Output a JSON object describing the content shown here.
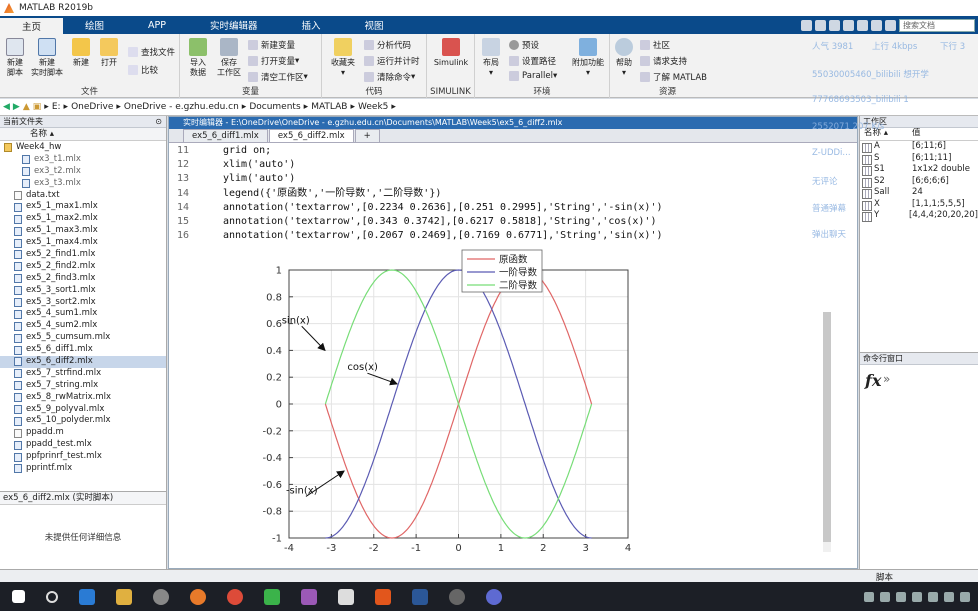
{
  "window": {
    "title": "MATLAB R2019b"
  },
  "ribbon_tabs": [
    "主页",
    "绘图",
    "APP",
    "实时编辑器",
    "插入",
    "视图"
  ],
  "search_placeholder": "搜索文档",
  "ribbon": {
    "new_script": "新建\n脚本",
    "new_live_script": "新建\n实时脚本",
    "new": "新建",
    "open": "打开",
    "find_files": "查找文件",
    "compare": "比较",
    "file_group": "文件",
    "import_data": "导入\n数据",
    "save_workspace": "保存\n工作区",
    "new_variable": "新建变量",
    "open_variable": "打开变量",
    "clear_workspace": "清空工作区",
    "variable_group": "变量",
    "favorites": "收藏夹",
    "analyze_code": "分析代码",
    "run_and_time": "运行并计时",
    "clear_commands": "清除命令",
    "code_group": "代码",
    "simulink": "Simulink",
    "simulink_group": "SIMULINK",
    "layout": "布局",
    "preferences": "预设",
    "set_path": "设置路径",
    "parallel": "Parallel",
    "addons": "附加功能",
    "env_group": "环境",
    "help": "帮助",
    "community": "社区",
    "request_support": "请求支持",
    "learn_matlab": "了解 MATLAB",
    "resources_group": "资源"
  },
  "address": [
    "E:",
    "OneDrive",
    "OneDrive - e.gzhu.edu.cn",
    "Documents",
    "MATLAB",
    "Week5"
  ],
  "current_folder": {
    "header": "当前文件夹",
    "name_col": "名称 ▴",
    "files": [
      {
        "name": "Week4_hw",
        "kind": "folder"
      },
      {
        "name": "ex3_t1.mlx",
        "kind": "sub"
      },
      {
        "name": "ex3_t2.mlx",
        "kind": "sub"
      },
      {
        "name": "ex3_t3.mlx",
        "kind": "sub"
      },
      {
        "name": "data.txt",
        "kind": "txt"
      },
      {
        "name": "ex5_1_max1.mlx",
        "kind": "mlx"
      },
      {
        "name": "ex5_1_max2.mlx",
        "kind": "mlx"
      },
      {
        "name": "ex5_1_max3.mlx",
        "kind": "mlx"
      },
      {
        "name": "ex5_1_max4.mlx",
        "kind": "mlx"
      },
      {
        "name": "ex5_2_find1.mlx",
        "kind": "mlx"
      },
      {
        "name": "ex5_2_find2.mlx",
        "kind": "mlx"
      },
      {
        "name": "ex5_2_find3.mlx",
        "kind": "mlx"
      },
      {
        "name": "ex5_3_sort1.mlx",
        "kind": "mlx"
      },
      {
        "name": "ex5_3_sort2.mlx",
        "kind": "mlx"
      },
      {
        "name": "ex5_4_sum1.mlx",
        "kind": "mlx"
      },
      {
        "name": "ex5_4_sum2.mlx",
        "kind": "mlx"
      },
      {
        "name": "ex5_5_cumsum.mlx",
        "kind": "mlx"
      },
      {
        "name": "ex5_6_diff1.mlx",
        "kind": "mlx"
      },
      {
        "name": "ex5_6_diff2.mlx",
        "kind": "mlx",
        "selected": true
      },
      {
        "name": "ex5_7_strfind.mlx",
        "kind": "mlx"
      },
      {
        "name": "ex5_7_string.mlx",
        "kind": "mlx"
      },
      {
        "name": "ex5_8_rwMatrix.mlx",
        "kind": "mlx"
      },
      {
        "name": "ex5_9_polyval.mlx",
        "kind": "mlx"
      },
      {
        "name": "ex5_10_polyder.mlx",
        "kind": "mlx"
      },
      {
        "name": "ppadd.m",
        "kind": "m"
      },
      {
        "name": "ppadd_test.mlx",
        "kind": "mlx"
      },
      {
        "name": "ppfprinrf_test.mlx",
        "kind": "mlx"
      },
      {
        "name": "pprintf.mlx",
        "kind": "mlx"
      }
    ],
    "detail_header": "ex5_6_diff2.mlx (实时脚本)",
    "detail_text": "未提供任何详细信息"
  },
  "editor": {
    "title": "实时编辑器 - E:\\OneDrive\\OneDrive - e.gzhu.edu.cn\\Documents\\MATLAB\\Week5\\ex5_6_diff2.mlx",
    "tabs": [
      "ex5_6_diff1.mlx",
      "ex5_6_diff2.mlx",
      "+"
    ],
    "code_lines": [
      {
        "n": "11",
        "t": "grid on;"
      },
      {
        "n": "12",
        "t": "xlim('auto')"
      },
      {
        "n": "13",
        "t": "ylim('auto')"
      },
      {
        "n": "14",
        "t": "legend({'原函数','一阶导数','二阶导数'})"
      },
      {
        "n": "14",
        "t": "annotation('textarrow',[0.2234 0.2636],[0.251 0.2995],'String','-sin(x)')"
      },
      {
        "n": "15",
        "t": "annotation('textarrow',[0.343 0.3742],[0.6217 0.5818],'String','cos(x)')"
      },
      {
        "n": "16",
        "t": "annotation('textarrow',[0.2067 0.2469],[0.7169 0.6771],'String','sin(x)')"
      }
    ]
  },
  "chart_data": {
    "type": "line",
    "xlim": [
      -4,
      4
    ],
    "ylim": [
      -1,
      1
    ],
    "xticks": [
      -4,
      -3,
      -2,
      -1,
      0,
      1,
      2,
      3,
      4
    ],
    "yticks": [
      -1,
      -0.8,
      -0.6,
      -0.4,
      -0.2,
      0,
      0.2,
      0.4,
      0.6,
      0.8,
      1
    ],
    "grid": true,
    "legend_position": "top-right",
    "series": [
      {
        "name": "原函数",
        "func": "sin(x)",
        "color": "#e06666"
      },
      {
        "name": "一阶导数",
        "func": "cos(x)",
        "color": "#5b5bb3"
      },
      {
        "name": "二阶导数",
        "func": "-sin(x)",
        "color": "#77dd77"
      }
    ],
    "x_range": [
      -3.1416,
      3.1416
    ],
    "annotations": [
      {
        "text": "sin(x)",
        "from": [
          -3.7,
          0.58
        ],
        "to": [
          -3.15,
          0.4
        ]
      },
      {
        "text": "cos(x)",
        "from": [
          -2.15,
          0.23
        ],
        "to": [
          -1.45,
          0.15
        ]
      },
      {
        "text": "-sin(x)",
        "from": [
          -3.6,
          -0.69
        ],
        "to": [
          -2.7,
          -0.5
        ]
      }
    ]
  },
  "workspace": {
    "header": "工作区",
    "name_col": "名称 ▴",
    "value_col": "值",
    "vars": [
      {
        "name": "A",
        "value": "[6;11;6]"
      },
      {
        "name": "S",
        "value": "[6;11;11]"
      },
      {
        "name": "S1",
        "value": "1x1x2 double"
      },
      {
        "name": "S2",
        "value": "[6;6;6;6]"
      },
      {
        "name": "Sall",
        "value": "24"
      },
      {
        "name": "X",
        "value": "[1,1,1;5,5,5]"
      },
      {
        "name": "Y",
        "value": "[4,4,4;20,20,20]"
      }
    ]
  },
  "cmdwin": {
    "header": "命令行窗口",
    "fx": "fx",
    "prompt": "»"
  },
  "status": {
    "left": "",
    "right": "脚本"
  },
  "overlay": [
    "人气 3981",
    "上行 4kbps",
    "下行 3",
    "55030005460_bilibili 想开学",
    "77768693503_bilibili 1",
    "2552071 207 K/s",
    "Z-UDDi...",
    "无评论",
    "普通弹幕",
    "弹出聊天"
  ]
}
